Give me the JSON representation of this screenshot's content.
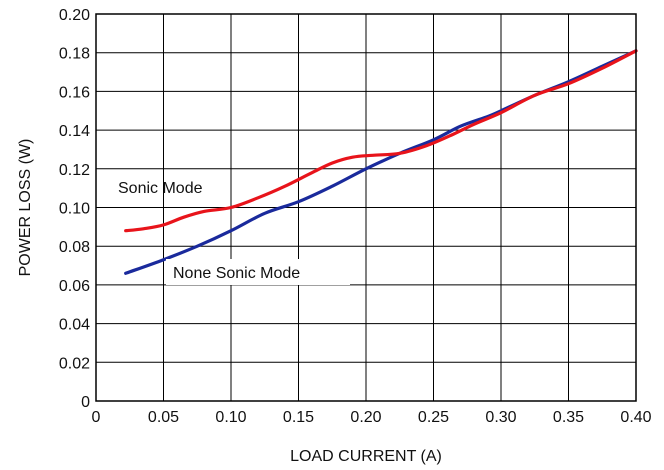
{
  "chart_data": {
    "type": "line",
    "title": "",
    "xlabel": "LOAD CURRENT (A)",
    "ylabel": "POWER LOSS (W)",
    "xlim": [
      0,
      0.4
    ],
    "ylim": [
      0,
      0.2
    ],
    "xticks": [
      0,
      0.05,
      0.1,
      0.15,
      0.2,
      0.25,
      0.3,
      0.35,
      0.4
    ],
    "yticks": [
      0,
      0.02,
      0.04,
      0.06,
      0.08,
      0.1,
      0.12,
      0.14,
      0.16,
      0.18,
      0.2
    ],
    "xtick_labels": [
      "0",
      "0.05",
      "0.10",
      "0.15",
      "0.20",
      "0.25",
      "0.30",
      "0.35",
      "0.40"
    ],
    "ytick_labels": [
      "0",
      "0.02",
      "0.04",
      "0.06",
      "0.08",
      "0.10",
      "0.12",
      "0.14",
      "0.16",
      "0.18",
      "0.20"
    ],
    "grid": true,
    "legend": "none",
    "annotations": [
      {
        "text": "Sonic Mode",
        "series": 0
      },
      {
        "text": "None Sonic Mode",
        "series": 1
      }
    ],
    "series": [
      {
        "name": "Sonic Mode",
        "color": "#e8141b",
        "points": [
          [
            0.022,
            0.088
          ],
          [
            0.035,
            0.089
          ],
          [
            0.05,
            0.091
          ],
          [
            0.065,
            0.095
          ],
          [
            0.08,
            0.098
          ],
          [
            0.1,
            0.1
          ],
          [
            0.12,
            0.105
          ],
          [
            0.14,
            0.111
          ],
          [
            0.16,
            0.118
          ],
          [
            0.175,
            0.123
          ],
          [
            0.19,
            0.126
          ],
          [
            0.205,
            0.127
          ],
          [
            0.225,
            0.128
          ],
          [
            0.245,
            0.132
          ],
          [
            0.265,
            0.138
          ],
          [
            0.28,
            0.143
          ],
          [
            0.3,
            0.149
          ],
          [
            0.325,
            0.158
          ],
          [
            0.35,
            0.164
          ],
          [
            0.375,
            0.172
          ],
          [
            0.4,
            0.181
          ]
        ]
      },
      {
        "name": "None Sonic Mode",
        "color": "#1a2a9c",
        "points": [
          [
            0.022,
            0.066
          ],
          [
            0.05,
            0.073
          ],
          [
            0.075,
            0.08
          ],
          [
            0.1,
            0.088
          ],
          [
            0.125,
            0.097
          ],
          [
            0.15,
            0.103
          ],
          [
            0.175,
            0.111
          ],
          [
            0.2,
            0.12
          ],
          [
            0.225,
            0.128
          ],
          [
            0.25,
            0.135
          ],
          [
            0.27,
            0.142
          ],
          [
            0.29,
            0.147
          ],
          [
            0.3,
            0.15
          ],
          [
            0.325,
            0.158
          ],
          [
            0.35,
            0.165
          ],
          [
            0.375,
            0.173
          ],
          [
            0.4,
            0.181
          ]
        ]
      }
    ]
  }
}
